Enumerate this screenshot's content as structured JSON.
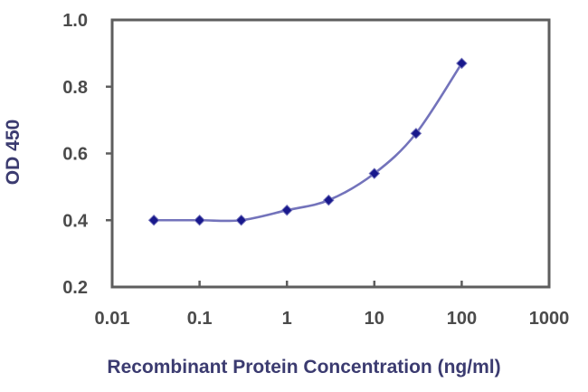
{
  "chart_data": {
    "type": "line",
    "title": "",
    "xlabel": "Recombinant Protein Concentration (ng/ml)",
    "ylabel": "OD 450",
    "x_scale": "log",
    "xlim": [
      0.01,
      1000
    ],
    "ylim": [
      0.2,
      1.0
    ],
    "x_ticks": [
      0.01,
      0.1,
      1,
      10,
      100,
      1000
    ],
    "x_tick_labels": [
      "0.01",
      "0.1",
      "1",
      "10",
      "100",
      "1000"
    ],
    "y_ticks": [
      0.2,
      0.4,
      0.6,
      0.8,
      1.0
    ],
    "y_tick_labels": [
      "0.2",
      "0.4",
      "0.6",
      "0.8",
      "1.0"
    ],
    "grid": "horizontal",
    "legend_position": "none",
    "series": [
      {
        "name": "OD 450",
        "marker": "diamond",
        "x": [
          0.03,
          0.1,
          0.3,
          1,
          3,
          10,
          30,
          100
        ],
        "y": [
          0.4,
          0.4,
          0.4,
          0.43,
          0.46,
          0.54,
          0.66,
          0.87
        ]
      }
    ],
    "colors": {
      "line": "#7373bb",
      "marker": "#18188c",
      "gridline": "#7d7d7d",
      "axis": "#5e5e5e",
      "tick_label": "#4b4b4b",
      "axis_title": "#3b3b70",
      "plot_background": "#ffffff"
    }
  }
}
